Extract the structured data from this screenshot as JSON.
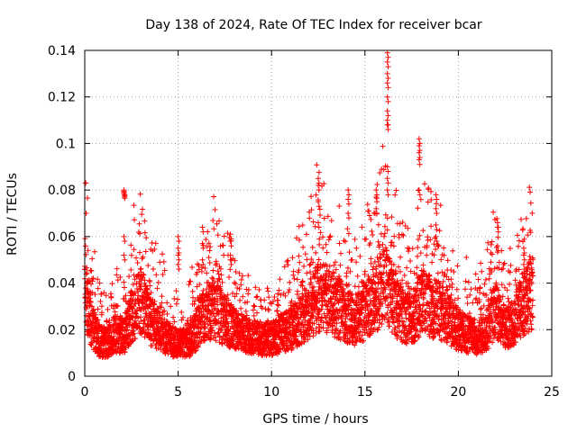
{
  "chart_data": {
    "type": "scatter",
    "title": "Day 138 of 2024, Rate Of TEC Index for receiver bcar",
    "xlabel": "GPS time / hours",
    "ylabel": "ROTI / TECUs",
    "xlim": [
      0,
      25
    ],
    "ylim": [
      0,
      0.14
    ],
    "grid": true,
    "marker": "+",
    "series_color": "#ff0000",
    "x_ticks": [
      0,
      5,
      10,
      15,
      20,
      25
    ],
    "x_tick_labels": [
      "0",
      "5",
      "10",
      "15",
      "20",
      "25"
    ],
    "y_ticks": [
      0,
      0.02,
      0.04,
      0.06,
      0.08,
      0.1,
      0.12,
      0.14
    ],
    "y_tick_labels": [
      "0",
      "0.02",
      "0.04",
      "0.06",
      "0.08",
      "0.1",
      "0.12",
      "0.14"
    ],
    "baseline_profile": [
      [
        0.0,
        0.042
      ],
      [
        0.2,
        0.026
      ],
      [
        0.5,
        0.02
      ],
      [
        0.8,
        0.015
      ],
      [
        1.2,
        0.014
      ],
      [
        1.6,
        0.018
      ],
      [
        2.2,
        0.018
      ],
      [
        2.6,
        0.028
      ],
      [
        3.0,
        0.033
      ],
      [
        3.5,
        0.024
      ],
      [
        4.0,
        0.02
      ],
      [
        4.5,
        0.016
      ],
      [
        5.0,
        0.014
      ],
      [
        5.5,
        0.014
      ],
      [
        6.0,
        0.02
      ],
      [
        6.5,
        0.028
      ],
      [
        7.0,
        0.028
      ],
      [
        7.5,
        0.024
      ],
      [
        8.0,
        0.02
      ],
      [
        8.5,
        0.018
      ],
      [
        9.0,
        0.017
      ],
      [
        9.5,
        0.016
      ],
      [
        10.0,
        0.016
      ],
      [
        10.5,
        0.018
      ],
      [
        11.0,
        0.02
      ],
      [
        11.5,
        0.024
      ],
      [
        12.0,
        0.028
      ],
      [
        12.5,
        0.034
      ],
      [
        13.0,
        0.033
      ],
      [
        13.5,
        0.03
      ],
      [
        14.0,
        0.026
      ],
      [
        14.5,
        0.024
      ],
      [
        15.0,
        0.028
      ],
      [
        15.5,
        0.034
      ],
      [
        16.0,
        0.04
      ],
      [
        16.5,
        0.032
      ],
      [
        17.0,
        0.026
      ],
      [
        17.5,
        0.024
      ],
      [
        18.0,
        0.032
      ],
      [
        18.5,
        0.03
      ],
      [
        19.0,
        0.028
      ],
      [
        19.5,
        0.024
      ],
      [
        20.0,
        0.02
      ],
      [
        20.5,
        0.018
      ],
      [
        21.0,
        0.016
      ],
      [
        21.5,
        0.02
      ],
      [
        22.0,
        0.028
      ],
      [
        22.5,
        0.02
      ],
      [
        23.0,
        0.024
      ],
      [
        23.5,
        0.032
      ],
      [
        24.0,
        0.036
      ]
    ],
    "spikes": [
      {
        "x": 2.1,
        "values": [
          0.079,
          0.0795,
          0.0785,
          0.08,
          0.06,
          0.052
        ]
      },
      {
        "x": 5.0,
        "values": [
          0.055,
          0.052,
          0.06,
          0.048
        ]
      },
      {
        "x": 6.3,
        "values": [
          0.064,
          0.057,
          0.05
        ]
      },
      {
        "x": 7.8,
        "values": [
          0.061,
          0.058,
          0.052,
          0.05
        ]
      },
      {
        "x": 12.5,
        "values": [
          0.085,
          0.082,
          0.075,
          0.066
        ]
      },
      {
        "x": 14.1,
        "values": [
          0.08,
          0.076,
          0.07
        ]
      },
      {
        "x": 15.6,
        "values": [
          0.08,
          0.077,
          0.072
        ]
      },
      {
        "x": 16.2,
        "values": [
          0.139,
          0.135,
          0.13,
          0.126,
          0.12,
          0.114,
          0.11,
          0.108,
          0.09,
          0.085,
          0.08
        ]
      },
      {
        "x": 17.9,
        "values": [
          0.102,
          0.099,
          0.096,
          0.093,
          0.08
        ]
      },
      {
        "x": 18.8,
        "values": [
          0.078,
          0.072,
          0.065,
          0.06
        ]
      },
      {
        "x": 22.1,
        "values": [
          0.066,
          0.064,
          0.056
        ]
      },
      {
        "x": 23.5,
        "values": [
          0.055,
          0.052,
          0.048
        ]
      }
    ]
  }
}
